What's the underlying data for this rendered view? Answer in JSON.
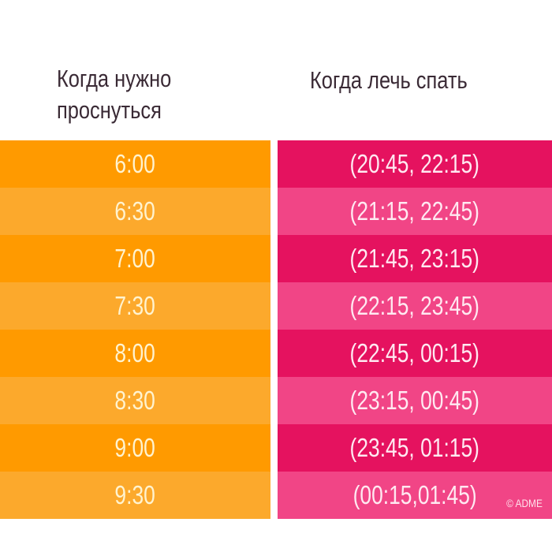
{
  "header": {
    "wake_line1": "Когда нужно",
    "wake_line2": "проснуться",
    "sleep": "Когда лечь спать"
  },
  "colors": {
    "orange_dark": "#ff9a00",
    "orange_light": "#fca92c",
    "pink_dark": "#e5125f",
    "pink_light": "#f14586"
  },
  "rows": [
    {
      "wake": "6:00",
      "sleep": "(20:45, 22:15)"
    },
    {
      "wake": "6:30",
      "sleep": "(21:15, 22:45)"
    },
    {
      "wake": "7:00",
      "sleep": "(21:45, 23:15)"
    },
    {
      "wake": "7:30",
      "sleep": "(22:15, 23:45)"
    },
    {
      "wake": "8:00",
      "sleep": "(22:45, 00:15)"
    },
    {
      "wake": "8:30",
      "sleep": "(23:15, 00:45)"
    },
    {
      "wake": "9:00",
      "sleep": "(23:45, 01:15)"
    },
    {
      "wake": "9:30",
      "sleep": "(00:15,01:45)"
    }
  ],
  "watermark": "© ADME"
}
